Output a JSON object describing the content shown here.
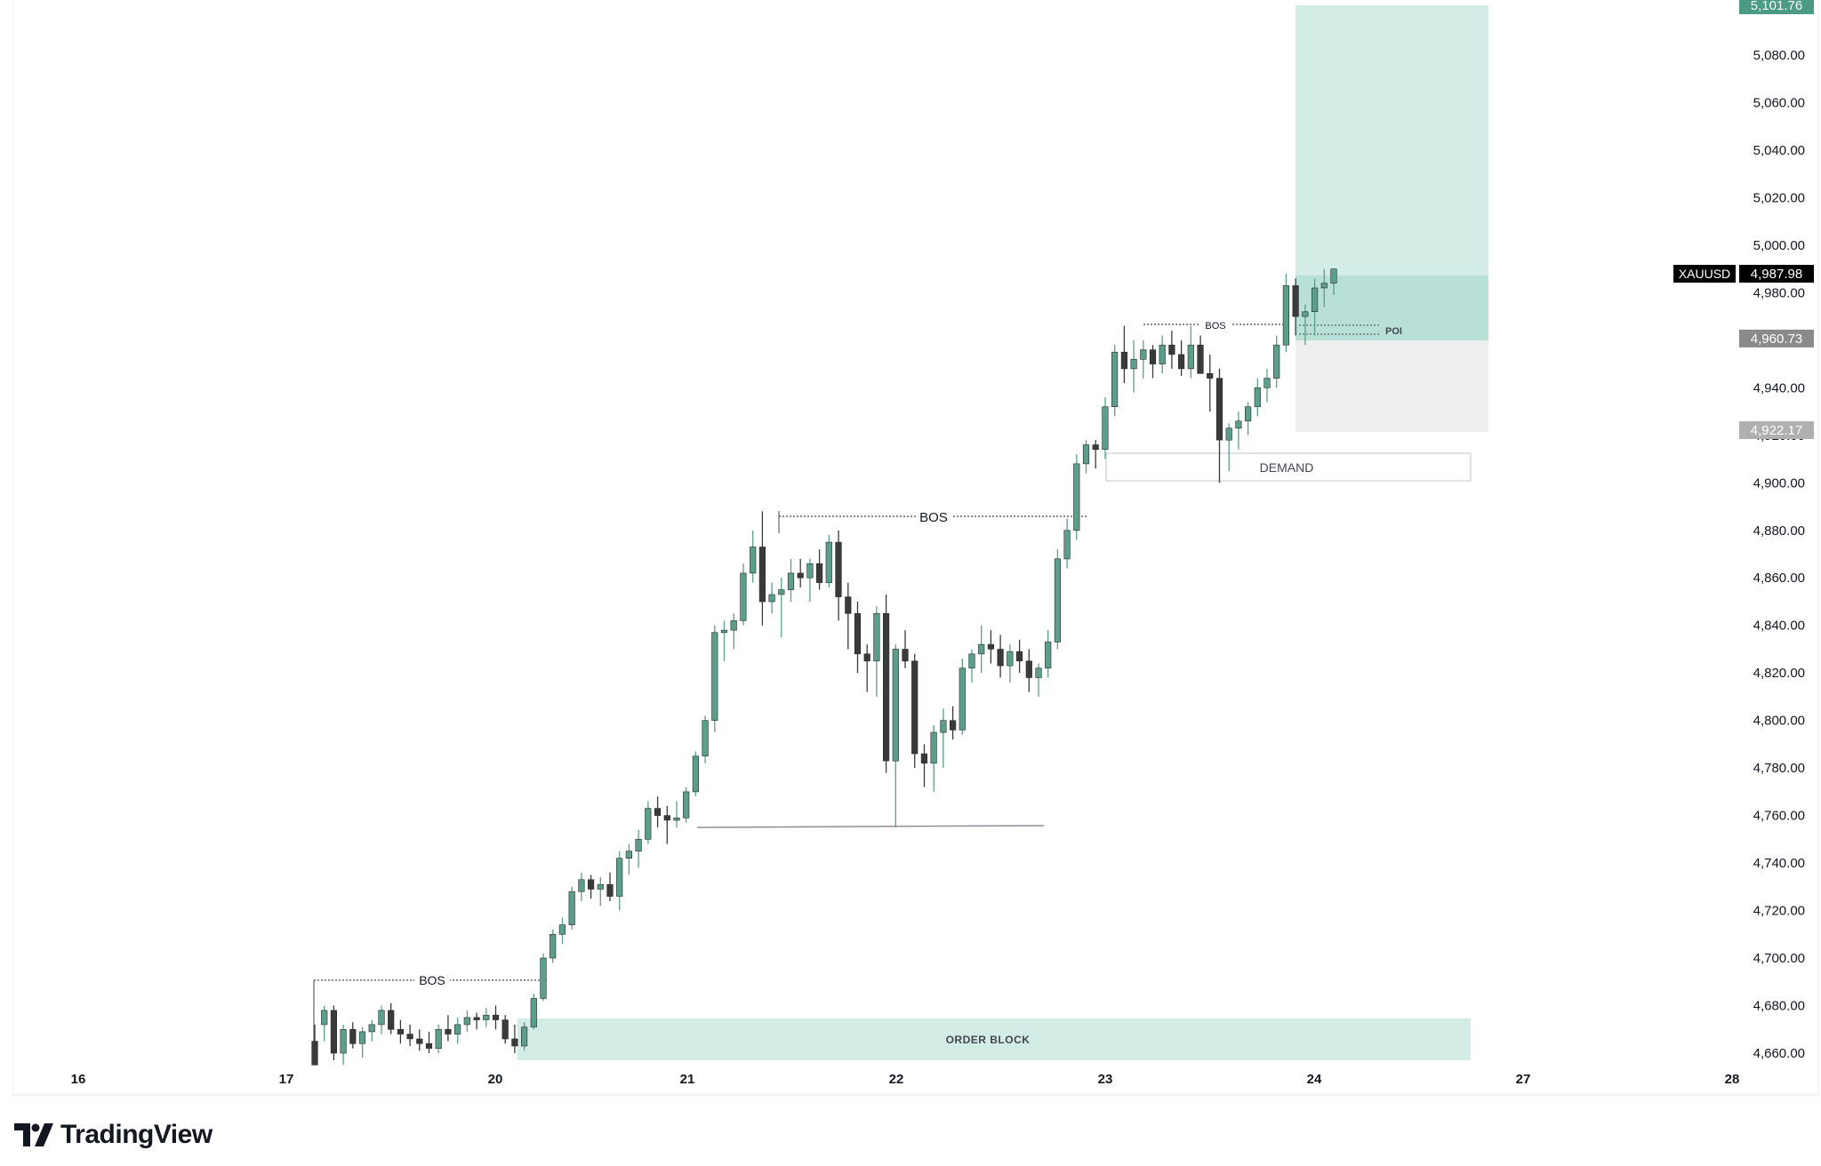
{
  "brand": {
    "name": "TradingView",
    "logo_icon": "tradingview-logo-icon"
  },
  "colors": {
    "up": "#5c9e8c",
    "down": "#3a3a3a",
    "zone_green": "#d3ece6",
    "zone_green_dark": "#b9e0d6",
    "zone_gray": "#eeeeee",
    "accent": "#4a9a84"
  },
  "chart_data": {
    "type": "candlestick",
    "symbol": "XAUUSD",
    "ylim": [
      4650,
      5105
    ],
    "y_ticks": [
      "4,660.00",
      "4,680.00",
      "4,700.00",
      "4,720.00",
      "4,740.00",
      "4,760.00",
      "4,780.00",
      "4,800.00",
      "4,820.00",
      "4,840.00",
      "4,860.00",
      "4,880.00",
      "4,900.00",
      "4,920.00",
      "4,940.00",
      "4,960.00",
      "4,980.00",
      "5,000.00",
      "5,020.00",
      "5,040.00",
      "5,060.00",
      "5,080.00"
    ],
    "x_ticks": [
      "16",
      "17",
      "20",
      "21",
      "22",
      "23",
      "24",
      "27",
      "28"
    ],
    "price_badges": [
      {
        "label": "5,101.76",
        "value": 5101.76,
        "color": "#4a9a84"
      },
      {
        "label": "4,987.98",
        "value": 4987.98,
        "color": "#000000",
        "symbol": "XAUUSD"
      },
      {
        "label": "4,960.73",
        "value": 4960.73,
        "color": "#8a8a8a"
      },
      {
        "label": "4,922.17",
        "value": 4922.17,
        "color": "#b0b0b0"
      }
    ],
    "annotations": {
      "bos": [
        "BOS",
        "BOS",
        "BOS"
      ],
      "order_block": "ORDER BLOCK",
      "demand": "DEMAND",
      "poi": "POI"
    },
    "candles": [
      [
        4665,
        4672,
        4655,
        4655
      ],
      [
        4672,
        4680,
        4665,
        4678
      ],
      [
        4678,
        4680,
        4657,
        4660
      ],
      [
        4660,
        4672,
        4655,
        4670
      ],
      [
        4670,
        4673,
        4662,
        4664
      ],
      [
        4664,
        4671,
        4658,
        4669
      ],
      [
        4669,
        4674,
        4665,
        4672
      ],
      [
        4672,
        4680,
        4668,
        4678
      ],
      [
        4678,
        4681,
        4668,
        4670
      ],
      [
        4670,
        4674,
        4664,
        4668
      ],
      [
        4668,
        4672,
        4663,
        4666
      ],
      [
        4666,
        4670,
        4661,
        4664
      ],
      [
        4664,
        4669,
        4660,
        4662
      ],
      [
        4662,
        4672,
        4660,
        4670
      ],
      [
        4670,
        4676,
        4665,
        4668
      ],
      [
        4668,
        4675,
        4664,
        4672
      ],
      [
        4672,
        4678,
        4669,
        4675
      ],
      [
        4675,
        4677,
        4670,
        4674
      ],
      [
        4674,
        4679,
        4671,
        4676
      ],
      [
        4676,
        4680,
        4670,
        4674
      ],
      [
        4674,
        4676,
        4664,
        4666
      ],
      [
        4666,
        4672,
        4660,
        4663
      ],
      [
        4663,
        4673,
        4661,
        4671
      ],
      [
        4671,
        4685,
        4670,
        4683
      ],
      [
        4683,
        4702,
        4682,
        4700
      ],
      [
        4700,
        4712,
        4698,
        4710
      ],
      [
        4710,
        4717,
        4706,
        4714
      ],
      [
        4714,
        4730,
        4712,
        4728
      ],
      [
        4728,
        4736,
        4724,
        4733
      ],
      [
        4733,
        4735,
        4725,
        4729
      ],
      [
        4729,
        4734,
        4722,
        4731
      ],
      [
        4731,
        4736,
        4724,
        4726
      ],
      [
        4726,
        4745,
        4720,
        4742
      ],
      [
        4742,
        4748,
        4735,
        4745
      ],
      [
        4745,
        4754,
        4738,
        4750
      ],
      [
        4750,
        4766,
        4748,
        4763
      ],
      [
        4763,
        4768,
        4755,
        4760
      ],
      [
        4760,
        4764,
        4748,
        4758
      ],
      [
        4758,
        4766,
        4755,
        4759
      ],
      [
        4759,
        4772,
        4757,
        4770
      ],
      [
        4770,
        4787,
        4768,
        4785
      ],
      [
        4785,
        4802,
        4782,
        4800
      ],
      [
        4800,
        4840,
        4795,
        4837
      ],
      [
        4837,
        4842,
        4825,
        4838
      ],
      [
        4838,
        4845,
        4830,
        4842
      ],
      [
        4842,
        4866,
        4840,
        4862
      ],
      [
        4862,
        4880,
        4858,
        4873
      ],
      [
        4873,
        4888,
        4840,
        4850
      ],
      [
        4850,
        4858,
        4845,
        4853
      ],
      [
        4853,
        4860,
        4835,
        4855
      ],
      [
        4855,
        4868,
        4850,
        4862
      ],
      [
        4862,
        4868,
        4856,
        4860
      ],
      [
        4860,
        4868,
        4850,
        4866
      ],
      [
        4866,
        4872,
        4855,
        4858
      ],
      [
        4858,
        4878,
        4856,
        4875
      ],
      [
        4875,
        4880,
        4842,
        4852
      ],
      [
        4852,
        4858,
        4830,
        4845
      ],
      [
        4845,
        4850,
        4820,
        4828
      ],
      [
        4828,
        4832,
        4812,
        4825
      ],
      [
        4825,
        4848,
        4810,
        4845
      ],
      [
        4845,
        4853,
        4778,
        4783
      ],
      [
        4783,
        4832,
        4755,
        4830
      ],
      [
        4830,
        4838,
        4822,
        4825
      ],
      [
        4825,
        4828,
        4780,
        4786
      ],
      [
        4786,
        4790,
        4772,
        4782
      ],
      [
        4782,
        4798,
        4770,
        4795
      ],
      [
        4795,
        4805,
        4780,
        4800
      ],
      [
        4800,
        4806,
        4792,
        4796
      ],
      [
        4796,
        4826,
        4794,
        4822
      ],
      [
        4822,
        4830,
        4816,
        4828
      ],
      [
        4828,
        4840,
        4820,
        4832
      ],
      [
        4832,
        4838,
        4824,
        4830
      ],
      [
        4830,
        4836,
        4818,
        4823
      ],
      [
        4823,
        4832,
        4816,
        4829
      ],
      [
        4829,
        4834,
        4820,
        4825
      ],
      [
        4825,
        4830,
        4812,
        4818
      ],
      [
        4818,
        4824,
        4810,
        4822
      ],
      [
        4822,
        4838,
        4818,
        4833
      ],
      [
        4833,
        4872,
        4830,
        4868
      ],
      [
        4868,
        4885,
        4864,
        4880
      ],
      [
        4880,
        4912,
        4876,
        4908
      ],
      [
        4908,
        4918,
        4904,
        4916
      ],
      [
        4916,
        4918,
        4906,
        4914
      ],
      [
        4914,
        4936,
        4910,
        4932
      ],
      [
        4932,
        4958,
        4928,
        4955
      ],
      [
        4955,
        4966,
        4942,
        4948
      ],
      [
        4948,
        4960,
        4938,
        4952
      ],
      [
        4952,
        4960,
        4944,
        4956
      ],
      [
        4956,
        4958,
        4944,
        4950
      ],
      [
        4950,
        4962,
        4946,
        4958
      ],
      [
        4958,
        4964,
        4948,
        4954
      ],
      [
        4954,
        4960,
        4945,
        4948
      ],
      [
        4948,
        4966,
        4944,
        4958
      ],
      [
        4958,
        4962,
        4948,
        4946
      ],
      [
        4946,
        4954,
        4930,
        4944
      ],
      [
        4944,
        4948,
        4900,
        4918
      ],
      [
        4918,
        4925,
        4905,
        4923
      ],
      [
        4923,
        4930,
        4914,
        4926
      ],
      [
        4926,
        4934,
        4920,
        4932
      ],
      [
        4932,
        4944,
        4928,
        4940
      ],
      [
        4940,
        4948,
        4934,
        4944
      ],
      [
        4944,
        4962,
        4940,
        4958
      ],
      [
        4958,
        4988,
        4955,
        4983
      ],
      [
        4983,
        4986,
        4962,
        4970
      ],
      [
        4970,
        4975,
        4958,
        4972
      ],
      [
        4972,
        4986,
        4962,
        4982
      ],
      [
        4982,
        4990,
        4974,
        4984
      ],
      [
        4984,
        4990,
        4979,
        4990
      ]
    ]
  }
}
